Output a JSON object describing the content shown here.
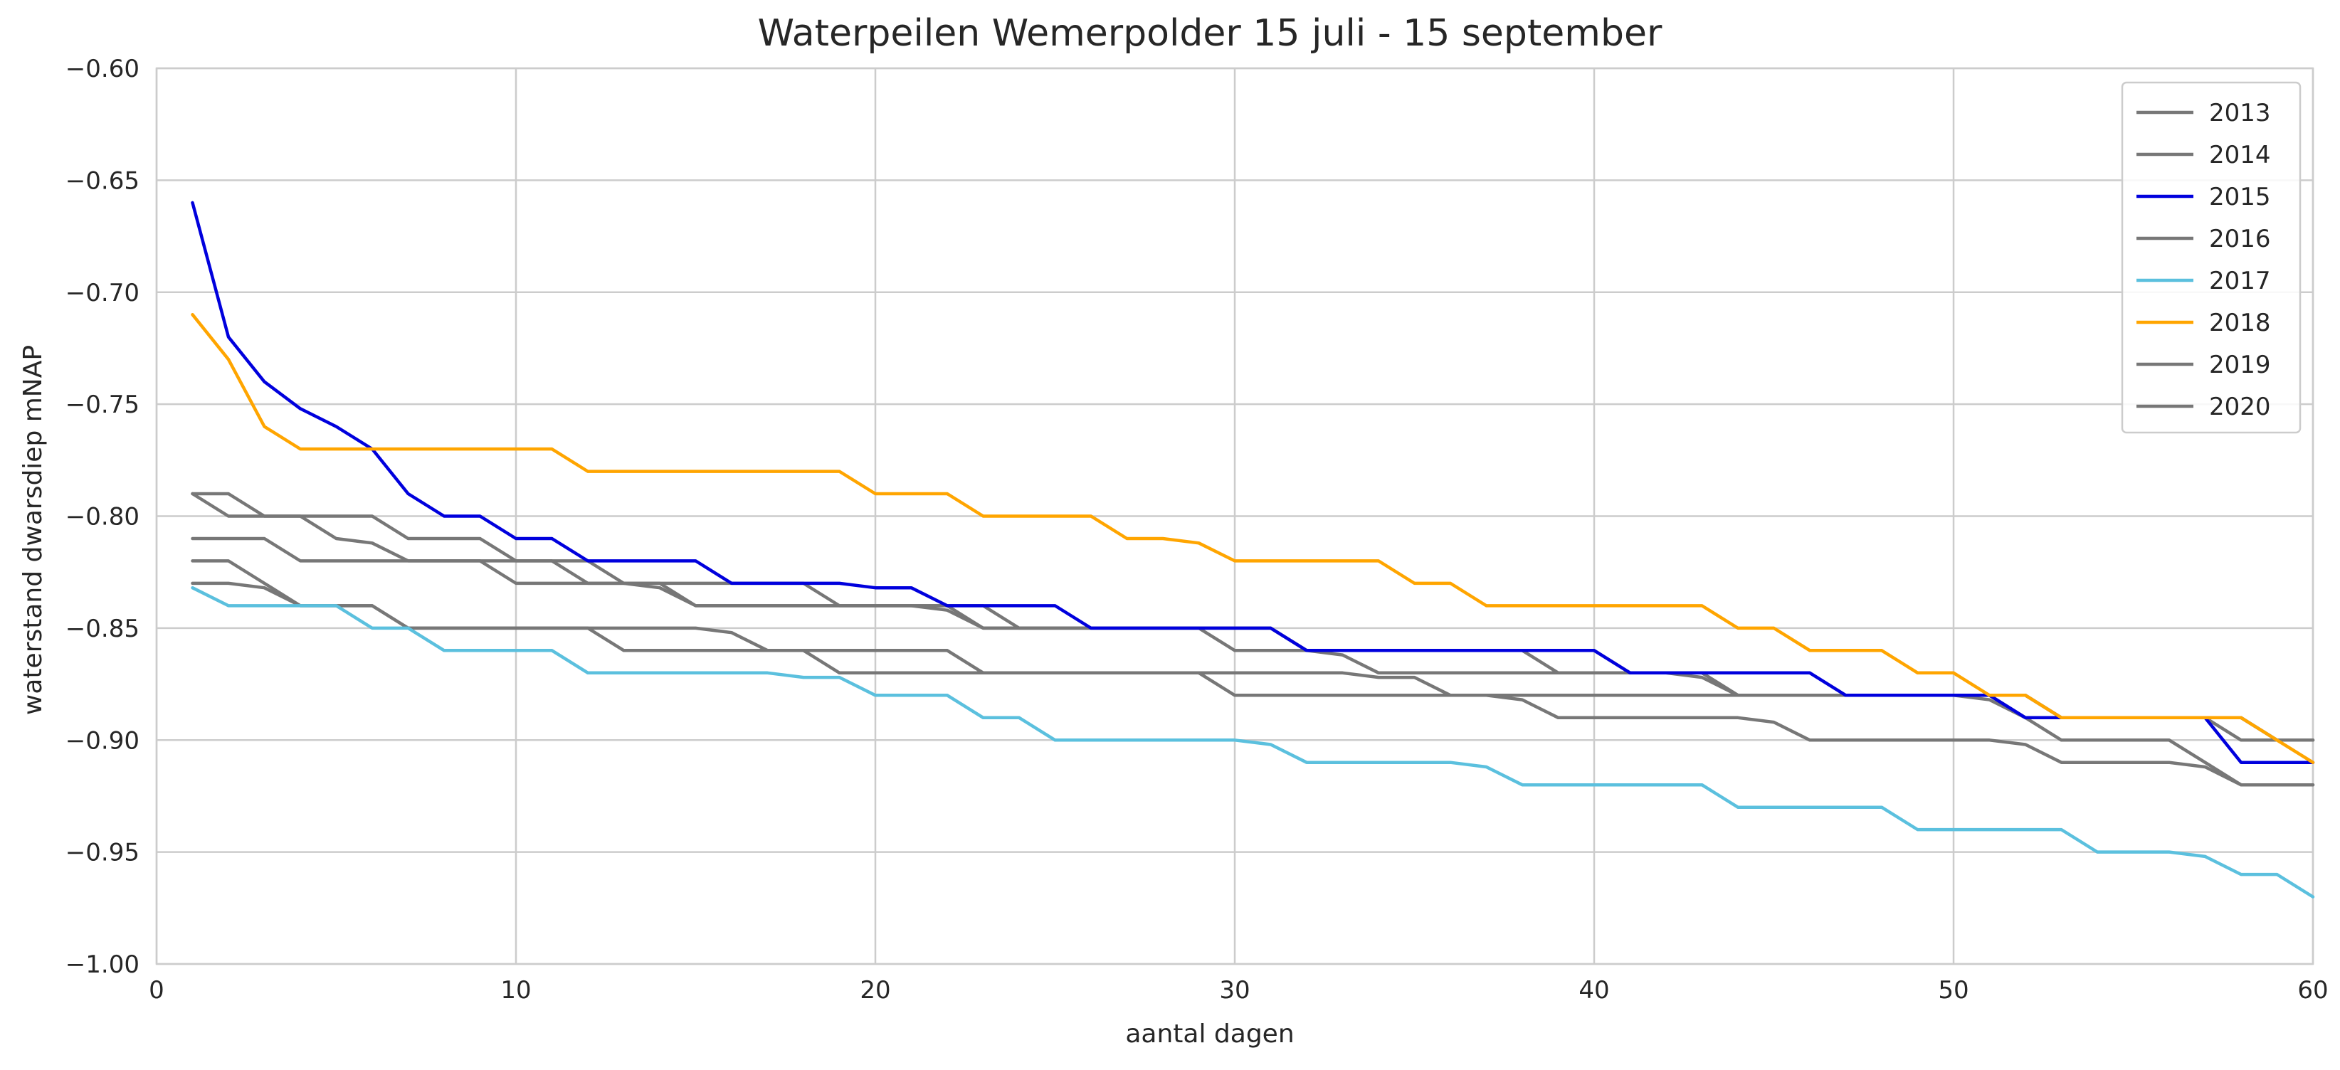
{
  "chart_data": {
    "type": "line",
    "title": "Waterpeilen Wemerpolder 15 juli - 15 september",
    "xlabel": "aantal dagen",
    "ylabel": "waterstand dwarsdiep mNAP",
    "xlim": [
      0,
      60
    ],
    "ylim": [
      -1.0,
      -0.6
    ],
    "xticks": [
      0,
      10,
      20,
      30,
      40,
      50,
      60
    ],
    "xtick_labels": [
      "0",
      "10",
      "20",
      "30",
      "40",
      "50",
      "60"
    ],
    "yticks": [
      -1.0,
      -0.95,
      -0.9,
      -0.85,
      -0.8,
      -0.75,
      -0.7,
      -0.65,
      -0.6
    ],
    "ytick_labels": [
      "−1.00",
      "−0.95",
      "−0.90",
      "−0.85",
      "−0.80",
      "−0.75",
      "−0.70",
      "−0.65",
      "−0.60"
    ],
    "grid": true,
    "legend_position": "top-right",
    "x": [
      1,
      2,
      3,
      4,
      5,
      6,
      7,
      8,
      9,
      10,
      11,
      12,
      13,
      14,
      15,
      16,
      17,
      18,
      19,
      20,
      21,
      22,
      23,
      24,
      25,
      26,
      27,
      28,
      29,
      30,
      31,
      32,
      33,
      34,
      35,
      36,
      37,
      38,
      39,
      40,
      41,
      42,
      43,
      44,
      45,
      46,
      47,
      48,
      49,
      50,
      51,
      52,
      53,
      54,
      55,
      56,
      57,
      58,
      59,
      60
    ],
    "series": [
      {
        "name": "2013",
        "color": "#777777",
        "values": [
          -0.79,
          -0.79,
          -0.8,
          -0.8,
          -0.8,
          -0.8,
          -0.81,
          -0.81,
          -0.81,
          -0.82,
          -0.82,
          -0.83,
          -0.83,
          -0.83,
          -0.84,
          -0.84,
          -0.84,
          -0.84,
          -0.84,
          -0.84,
          -0.84,
          -0.84,
          -0.85,
          -0.85,
          -0.85,
          -0.85,
          -0.85,
          -0.85,
          -0.85,
          -0.85,
          -0.85,
          -0.86,
          -0.86,
          -0.86,
          -0.86,
          -0.86,
          -0.86,
          -0.86,
          -0.87,
          -0.87,
          -0.87,
          -0.87,
          -0.87,
          -0.88,
          -0.88,
          -0.88,
          -0.88,
          -0.88,
          -0.88,
          -0.88,
          -0.88,
          -0.88,
          -0.89,
          -0.89,
          -0.89,
          -0.89,
          -0.89,
          -0.89,
          -0.9,
          -0.9
        ]
      },
      {
        "name": "2014",
        "color": "#777777",
        "values": [
          -0.81,
          -0.81,
          -0.81,
          -0.82,
          -0.82,
          -0.82,
          -0.82,
          -0.82,
          -0.82,
          -0.82,
          -0.82,
          -0.82,
          -0.83,
          -0.83,
          -0.83,
          -0.83,
          -0.83,
          -0.83,
          -0.84,
          -0.84,
          -0.84,
          -0.84,
          -0.84,
          -0.85,
          -0.85,
          -0.85,
          -0.85,
          -0.85,
          -0.85,
          -0.85,
          -0.85,
          -0.86,
          -0.86,
          -0.86,
          -0.86,
          -0.86,
          -0.86,
          -0.86,
          -0.86,
          -0.86,
          -0.87,
          -0.87,
          -0.87,
          -0.88,
          -0.88,
          -0.88,
          -0.88,
          -0.88,
          -0.88,
          -0.88,
          -0.88,
          -0.89,
          -0.89,
          -0.89,
          -0.89,
          -0.89,
          -0.89,
          -0.89,
          -0.9,
          -0.9
        ]
      },
      {
        "name": "2015",
        "color": "#0000dd",
        "values": [
          -0.66,
          -0.72,
          -0.74,
          -0.752,
          -0.76,
          -0.77,
          -0.79,
          -0.8,
          -0.8,
          -0.81,
          -0.81,
          -0.82,
          -0.82,
          -0.82,
          -0.82,
          -0.83,
          -0.83,
          -0.83,
          -0.83,
          -0.832,
          -0.832,
          -0.84,
          -0.84,
          -0.84,
          -0.84,
          -0.85,
          -0.85,
          -0.85,
          -0.85,
          -0.85,
          -0.85,
          -0.86,
          -0.86,
          -0.86,
          -0.86,
          -0.86,
          -0.86,
          -0.86,
          -0.86,
          -0.86,
          -0.87,
          -0.87,
          -0.87,
          -0.87,
          -0.87,
          -0.87,
          -0.88,
          -0.88,
          -0.88,
          -0.88,
          -0.88,
          -0.89,
          -0.89,
          -0.89,
          -0.89,
          -0.89,
          -0.89,
          -0.91,
          -0.91,
          -0.91
        ]
      },
      {
        "name": "2016",
        "color": "#777777",
        "values": [
          -0.82,
          -0.82,
          -0.83,
          -0.84,
          -0.84,
          -0.84,
          -0.85,
          -0.85,
          -0.85,
          -0.85,
          -0.85,
          -0.85,
          -0.85,
          -0.85,
          -0.85,
          -0.852,
          -0.86,
          -0.86,
          -0.86,
          -0.86,
          -0.86,
          -0.86,
          -0.87,
          -0.87,
          -0.87,
          -0.87,
          -0.87,
          -0.87,
          -0.87,
          -0.87,
          -0.87,
          -0.87,
          -0.87,
          -0.872,
          -0.872,
          -0.88,
          -0.88,
          -0.88,
          -0.88,
          -0.88,
          -0.88,
          -0.88,
          -0.88,
          -0.88,
          -0.88,
          -0.88,
          -0.88,
          -0.88,
          -0.88,
          -0.88,
          -0.88,
          -0.88,
          -0.89,
          -0.89,
          -0.89,
          -0.89,
          -0.89,
          -0.9,
          -0.9,
          -0.9
        ]
      },
      {
        "name": "2017",
        "color": "#5bc0de",
        "values": [
          -0.832,
          -0.84,
          -0.84,
          -0.84,
          -0.84,
          -0.85,
          -0.85,
          -0.86,
          -0.86,
          -0.86,
          -0.86,
          -0.87,
          -0.87,
          -0.87,
          -0.87,
          -0.87,
          -0.87,
          -0.872,
          -0.872,
          -0.88,
          -0.88,
          -0.88,
          -0.89,
          -0.89,
          -0.9,
          -0.9,
          -0.9,
          -0.9,
          -0.9,
          -0.9,
          -0.902,
          -0.91,
          -0.91,
          -0.91,
          -0.91,
          -0.91,
          -0.912,
          -0.92,
          -0.92,
          -0.92,
          -0.92,
          -0.92,
          -0.92,
          -0.93,
          -0.93,
          -0.93,
          -0.93,
          -0.93,
          -0.94,
          -0.94,
          -0.94,
          -0.94,
          -0.94,
          -0.95,
          -0.95,
          -0.95,
          -0.952,
          -0.96,
          -0.96,
          -0.97
        ]
      },
      {
        "name": "2018",
        "color": "#ffa500",
        "values": [
          -0.71,
          -0.73,
          -0.76,
          -0.77,
          -0.77,
          -0.77,
          -0.77,
          -0.77,
          -0.77,
          -0.77,
          -0.77,
          -0.78,
          -0.78,
          -0.78,
          -0.78,
          -0.78,
          -0.78,
          -0.78,
          -0.78,
          -0.79,
          -0.79,
          -0.79,
          -0.8,
          -0.8,
          -0.8,
          -0.8,
          -0.81,
          -0.81,
          -0.812,
          -0.82,
          -0.82,
          -0.82,
          -0.82,
          -0.82,
          -0.83,
          -0.83,
          -0.84,
          -0.84,
          -0.84,
          -0.84,
          -0.84,
          -0.84,
          -0.84,
          -0.85,
          -0.85,
          -0.86,
          -0.86,
          -0.86,
          -0.87,
          -0.87,
          -0.88,
          -0.88,
          -0.89,
          -0.89,
          -0.89,
          -0.89,
          -0.89,
          -0.89,
          -0.9,
          -0.91
        ]
      },
      {
        "name": "2019",
        "color": "#777777",
        "values": [
          -0.83,
          -0.83,
          -0.832,
          -0.84,
          -0.84,
          -0.84,
          -0.85,
          -0.85,
          -0.85,
          -0.85,
          -0.85,
          -0.85,
          -0.86,
          -0.86,
          -0.86,
          -0.86,
          -0.86,
          -0.86,
          -0.87,
          -0.87,
          -0.87,
          -0.87,
          -0.87,
          -0.87,
          -0.87,
          -0.87,
          -0.87,
          -0.87,
          -0.87,
          -0.88,
          -0.88,
          -0.88,
          -0.88,
          -0.88,
          -0.88,
          -0.88,
          -0.88,
          -0.882,
          -0.89,
          -0.89,
          -0.89,
          -0.89,
          -0.89,
          -0.89,
          -0.892,
          -0.9,
          -0.9,
          -0.9,
          -0.9,
          -0.9,
          -0.9,
          -0.902,
          -0.91,
          -0.91,
          -0.91,
          -0.91,
          -0.912,
          -0.92,
          -0.92,
          -0.92
        ]
      },
      {
        "name": "2020",
        "color": "#777777",
        "values": [
          -0.79,
          -0.8,
          -0.8,
          -0.8,
          -0.81,
          -0.812,
          -0.82,
          -0.82,
          -0.82,
          -0.83,
          -0.83,
          -0.83,
          -0.83,
          -0.832,
          -0.84,
          -0.84,
          -0.84,
          -0.84,
          -0.84,
          -0.84,
          -0.84,
          -0.842,
          -0.85,
          -0.85,
          -0.85,
          -0.85,
          -0.85,
          -0.85,
          -0.85,
          -0.86,
          -0.86,
          -0.86,
          -0.862,
          -0.87,
          -0.87,
          -0.87,
          -0.87,
          -0.87,
          -0.87,
          -0.87,
          -0.87,
          -0.87,
          -0.872,
          -0.88,
          -0.88,
          -0.88,
          -0.88,
          -0.88,
          -0.88,
          -0.88,
          -0.882,
          -0.89,
          -0.9,
          -0.9,
          -0.9,
          -0.9,
          -0.91,
          -0.92,
          -0.92,
          -0.92
        ]
      }
    ]
  }
}
